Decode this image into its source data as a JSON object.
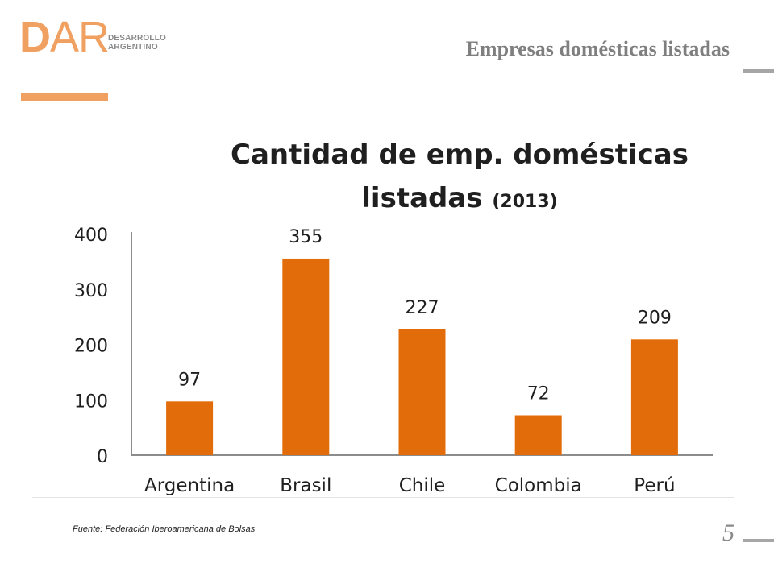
{
  "header": {
    "logo_letters_d": "D",
    "logo_letters_ar": "AR",
    "logo_line1": "DESARROLLO",
    "logo_line2": "ARGENTINO",
    "title": "Empresas domésticas listadas"
  },
  "chart_data": {
    "type": "bar",
    "title_line1": "Cantidad de emp. domésticas",
    "title_line2": "listadas",
    "title_year": "(2013)",
    "categories": [
      "Argentina",
      "Brasil",
      "Chile",
      "Colombia",
      "Perú"
    ],
    "values": [
      97,
      355,
      227,
      72,
      209
    ],
    "data_labels": [
      "97",
      "355",
      "227",
      "72",
      "209"
    ],
    "ylim": [
      0,
      400
    ],
    "yticks": [
      "0",
      "100",
      "200",
      "300",
      "400"
    ],
    "bar_color": "#e36c0a",
    "grid": false,
    "legend": "none"
  },
  "footer": {
    "source": "Fuente: Federación Iberoamericana de Bolsas",
    "page_number": "5"
  },
  "colors": {
    "brand_orange": "#f0a060",
    "bar_orange": "#e36c0a",
    "header_gray": "#7f7f7f"
  }
}
